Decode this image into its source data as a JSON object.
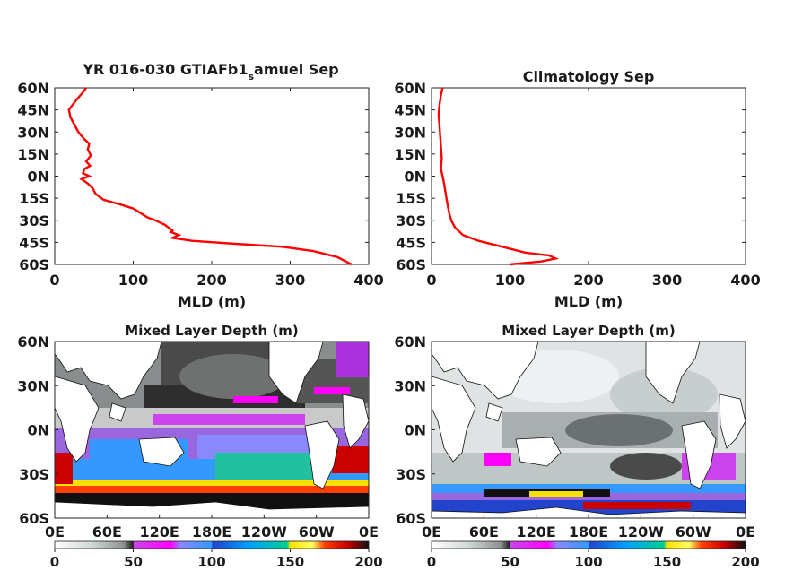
{
  "chart_data": [
    {
      "type": "line",
      "title_main": "YR 016-030 GTIAFb1",
      "title_sub": "s",
      "title_tail": "amuel Sep",
      "xlabel": "MLD (m)",
      "ylabel": "",
      "xlim": [
        0,
        400
      ],
      "ylim": [
        -60,
        60
      ],
      "xticks": [
        "0",
        "100",
        "200",
        "300",
        "400"
      ],
      "yticks": [
        "60N",
        "45N",
        "30N",
        "15N",
        "0N",
        "15S",
        "30S",
        "45S",
        "60S"
      ],
      "series": [
        {
          "color": "#ff0000",
          "x": [
            40,
            36,
            28,
            22,
            18,
            20,
            25,
            30,
            38,
            44,
            42,
            46,
            40,
            45,
            38,
            36,
            44,
            34,
            42,
            48,
            52,
            62,
            82,
            100,
            112,
            118,
            128,
            140,
            150,
            148,
            158,
            150,
            175,
            230,
            290,
            330,
            360,
            378
          ],
          "y": [
            60,
            57,
            52,
            48,
            45,
            40,
            35,
            30,
            25,
            22,
            18,
            14,
            10,
            7,
            5,
            2,
            0,
            -2,
            -5,
            -8,
            -12,
            -16,
            -19,
            -22,
            -26,
            -28,
            -30,
            -33,
            -37,
            -38,
            -40,
            -42,
            -44,
            -46,
            -48,
            -51,
            -55,
            -60
          ]
        }
      ]
    },
    {
      "type": "line",
      "title_main": "Climatology Sep",
      "xlabel": "MLD (m)",
      "ylabel": "",
      "xlim": [
        0,
        400
      ],
      "ylim": [
        -60,
        60
      ],
      "xticks": [
        "0",
        "100",
        "200",
        "300",
        "400"
      ],
      "yticks": [
        "60N",
        "45N",
        "30N",
        "15N",
        "0N",
        "15S",
        "30S",
        "45S",
        "60S"
      ],
      "series": [
        {
          "color": "#ff0000",
          "x": [
            14,
            12,
            10,
            9,
            10,
            11,
            12,
            13,
            12,
            14,
            16,
            18,
            20,
            22,
            25,
            30,
            40,
            60,
            90,
            120,
            150,
            158,
            140,
            118,
            100
          ],
          "y": [
            60,
            55,
            48,
            42,
            35,
            28,
            20,
            12,
            5,
            0,
            -5,
            -12,
            -18,
            -24,
            -30,
            -35,
            -40,
            -44,
            -48,
            -52,
            -54,
            -56,
            -58,
            -59,
            -60
          ]
        }
      ]
    },
    {
      "type": "heatmap",
      "title_main": "Mixed Layer Depth (m)",
      "xticks": [
        "0E",
        "60E",
        "120E",
        "180E",
        "120W",
        "60W",
        "0E"
      ],
      "yticks": [
        "60N",
        "30N",
        "0N",
        "30S",
        "60S"
      ],
      "colorbar_ticks": [
        "0",
        "50",
        "100",
        "150",
        "200"
      ],
      "colorbar_range": [
        0,
        200
      ]
    },
    {
      "type": "heatmap",
      "title_main": "Mixed Layer Depth (m)",
      "xticks": [
        "0E",
        "60E",
        "120E",
        "180E",
        "120W",
        "60W",
        "0E"
      ],
      "yticks": [
        "60N",
        "30N",
        "0N",
        "30S",
        "60S"
      ],
      "colorbar_ticks": [
        "0",
        "50",
        "100",
        "150",
        "200"
      ],
      "colorbar_range": [
        0,
        200
      ]
    }
  ]
}
